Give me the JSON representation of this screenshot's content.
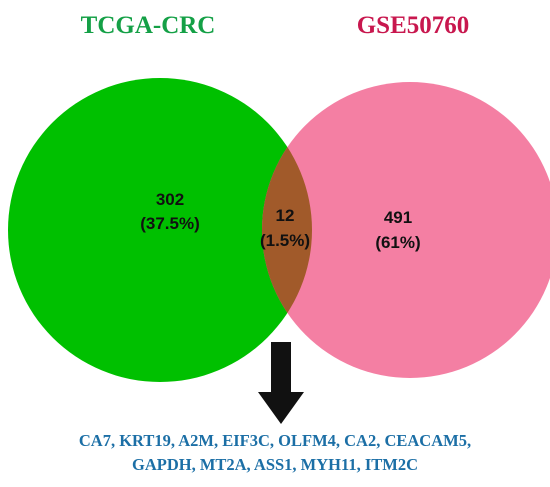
{
  "venn": {
    "sets": [
      {
        "title": "TCGA-CRC",
        "color": "#00c000",
        "title_color": "#14a046"
      },
      {
        "title": "GSE50760",
        "color": "#f47fa3",
        "title_color": "#c8174e"
      }
    ],
    "overlap_color": "#a15a2a",
    "regions": {
      "left_only": {
        "count": "302",
        "percent": "(37.5%)"
      },
      "overlap": {
        "count": "12",
        "percent": "(1.5%)"
      },
      "right_only": {
        "count": "491",
        "percent": "(61%)"
      }
    }
  },
  "arrow_color": "#111111",
  "genes": {
    "color": "#1c6fa6",
    "line1": "CA7, KRT19, A2M, EIF3C, OLFM4, CA2, CEACAM5,",
    "line2": "GAPDH, MT2A, ASS1, MYH11, ITM2C"
  }
}
